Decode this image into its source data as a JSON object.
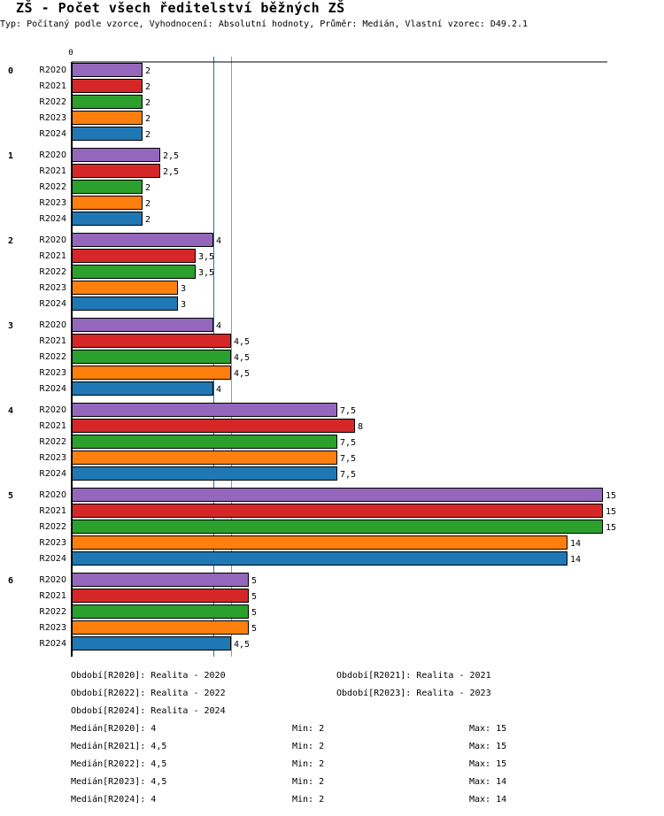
{
  "header": {
    "title": "ZŠ - Počet všech ředitelství běžných ZŠ",
    "subtitle": "Typ: Počítaný podle vzorce, Vyhodnocení: Absolutní hodnoty, Průměr: Medián, Vlastní vzorec: D49.2.1"
  },
  "chart_data": {
    "type": "bar",
    "orientation": "horizontal",
    "title": "ZŠ - Počet všech ředitelství běžných ZŠ",
    "xlabel": "",
    "ylabel": "",
    "x_tick_labels": [
      "0"
    ],
    "xlim": [
      0,
      15
    ],
    "grid": false,
    "categories": [
      "0",
      "1",
      "2",
      "3",
      "4",
      "5",
      "6"
    ],
    "series": [
      {
        "name": "R2020",
        "color": "#9467bd",
        "values": [
          2,
          2.5,
          4,
          4,
          7.5,
          15,
          5
        ],
        "labels": [
          "2",
          "2,5",
          "4",
          "4",
          "7,5",
          "15",
          "5"
        ]
      },
      {
        "name": "R2021",
        "color": "#d62728",
        "values": [
          2,
          2.5,
          3.5,
          4.5,
          8,
          15,
          5
        ],
        "labels": [
          "2",
          "2,5",
          "3,5",
          "4,5",
          "8",
          "15",
          "5"
        ]
      },
      {
        "name": "R2022",
        "color": "#2ca02c",
        "values": [
          2,
          2,
          3.5,
          4.5,
          7.5,
          15,
          5
        ],
        "labels": [
          "2",
          "2",
          "3,5",
          "4,5",
          "7,5",
          "15",
          "5"
        ]
      },
      {
        "name": "R2023",
        "color": "#ff7f0e",
        "values": [
          2,
          2,
          3,
          4.5,
          7.5,
          14,
          5
        ],
        "labels": [
          "2",
          "2",
          "3",
          "4,5",
          "7,5",
          "14",
          "5"
        ]
      },
      {
        "name": "R2024",
        "color": "#1f77b4",
        "values": [
          2,
          2,
          3,
          4,
          7.5,
          14,
          4.5
        ],
        "labels": [
          "2",
          "2",
          "3",
          "4",
          "7,5",
          "14",
          "4,5"
        ]
      }
    ],
    "reference_lines": [
      {
        "name": "median-blue",
        "value": 4,
        "color": "#1f77b4"
      },
      {
        "name": "median-orange",
        "value": 4.5,
        "color": "#ff7f0e"
      }
    ]
  },
  "legend": {
    "periods": [
      "Období[R2020]: Realita - 2020",
      "Období[R2021]: Realita - 2021",
      "Období[R2022]: Realita - 2022",
      "Období[R2023]: Realita - 2023",
      "Období[R2024]: Realita - 2024"
    ],
    "stats": [
      {
        "median": "Medián[R2020]: 4",
        "min": "Min: 2",
        "max": "Max: 15"
      },
      {
        "median": "Medián[R2021]: 4,5",
        "min": "Min: 2",
        "max": "Max: 15"
      },
      {
        "median": "Medián[R2022]: 4,5",
        "min": "Min: 2",
        "max": "Max: 15"
      },
      {
        "median": "Medián[R2023]: 4,5",
        "min": "Min: 2",
        "max": "Max: 14"
      },
      {
        "median": "Medián[R2024]: 4",
        "min": "Min: 2",
        "max": "Max: 14"
      }
    ]
  }
}
